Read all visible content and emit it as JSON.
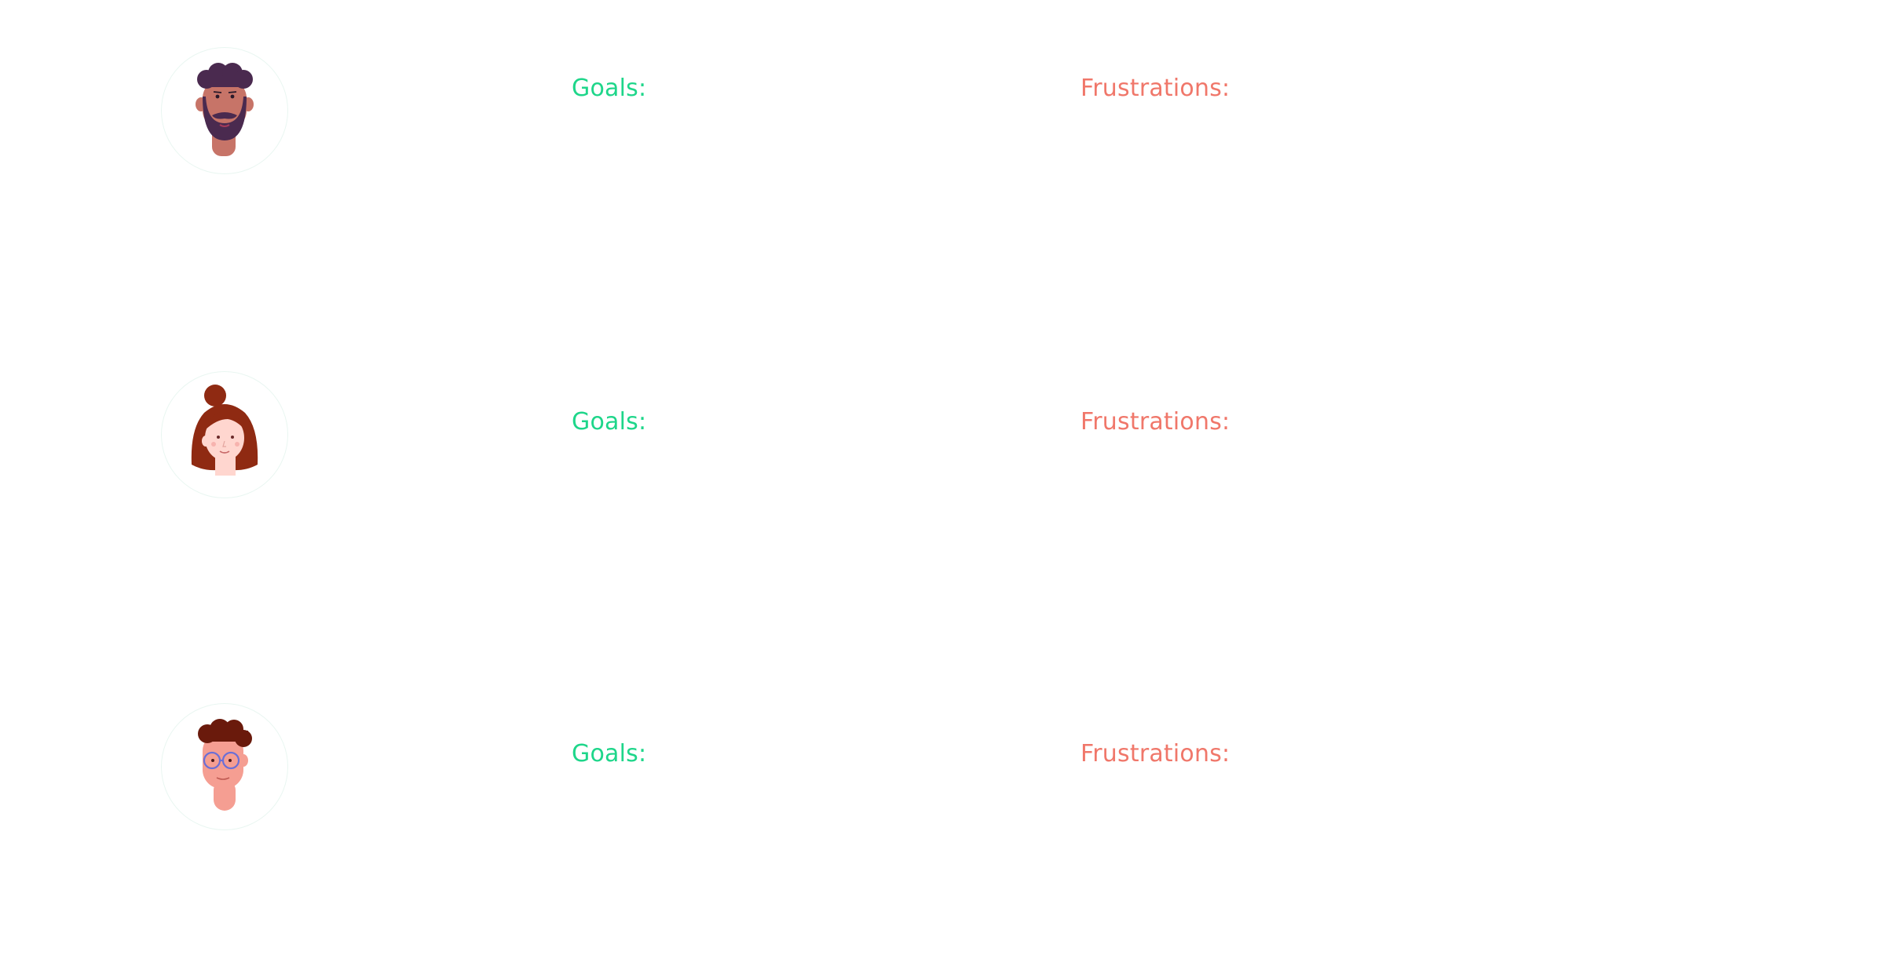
{
  "personas": [
    {
      "avatar_icon": "bearded-man-avatar-icon",
      "goals_label": "Goals:",
      "frustrations_label": "Frustrations:"
    },
    {
      "avatar_icon": "red-haired-woman-avatar-icon",
      "goals_label": "Goals:",
      "frustrations_label": "Frustrations:"
    },
    {
      "avatar_icon": "man-with-glasses-avatar-icon",
      "goals_label": "Goals:",
      "frustrations_label": "Frustrations:"
    }
  ],
  "colors": {
    "goals": "#1ed68a",
    "frustrations": "#f0776a",
    "avatar_ring": "#e9f6f1"
  }
}
